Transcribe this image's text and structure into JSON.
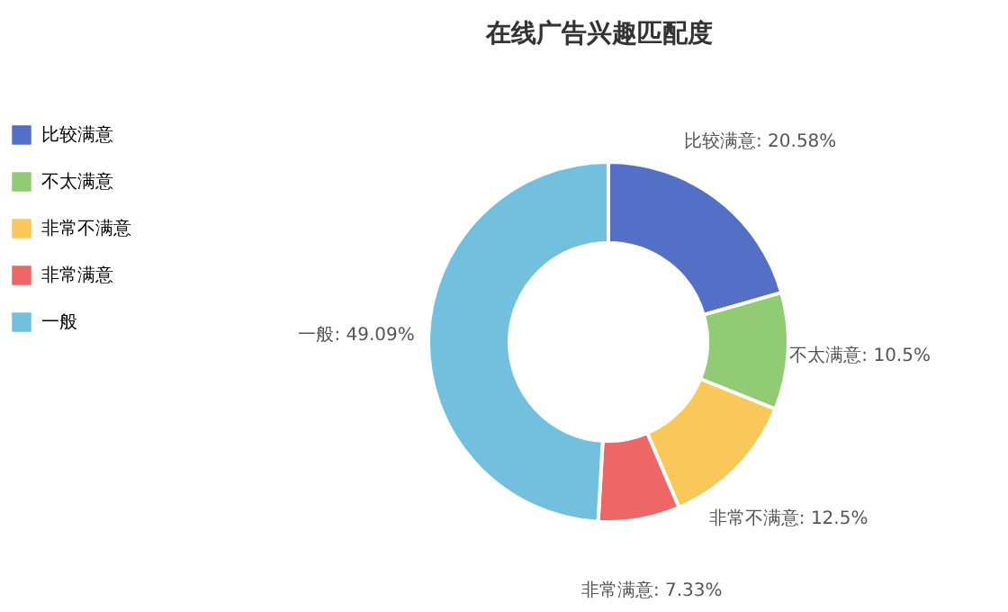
{
  "chart_data": {
    "type": "donut",
    "title": "在线广告兴趣匹配度",
    "categories": [
      "比较满意",
      "不太满意",
      "非常不满意",
      "非常满意",
      "一般"
    ],
    "values": [
      20.58,
      10.5,
      12.5,
      7.33,
      49.09
    ],
    "colors": [
      "#5470c6",
      "#91cc75",
      "#fac858",
      "#ee6666",
      "#73c0de"
    ],
    "value_labels": [
      "比较满意: 20.58%",
      "不太满意: 10.5%",
      "非常不满意: 12.5%",
      "非常满意: 7.33%",
      "一般: 49.09%"
    ],
    "legend": "top left"
  }
}
